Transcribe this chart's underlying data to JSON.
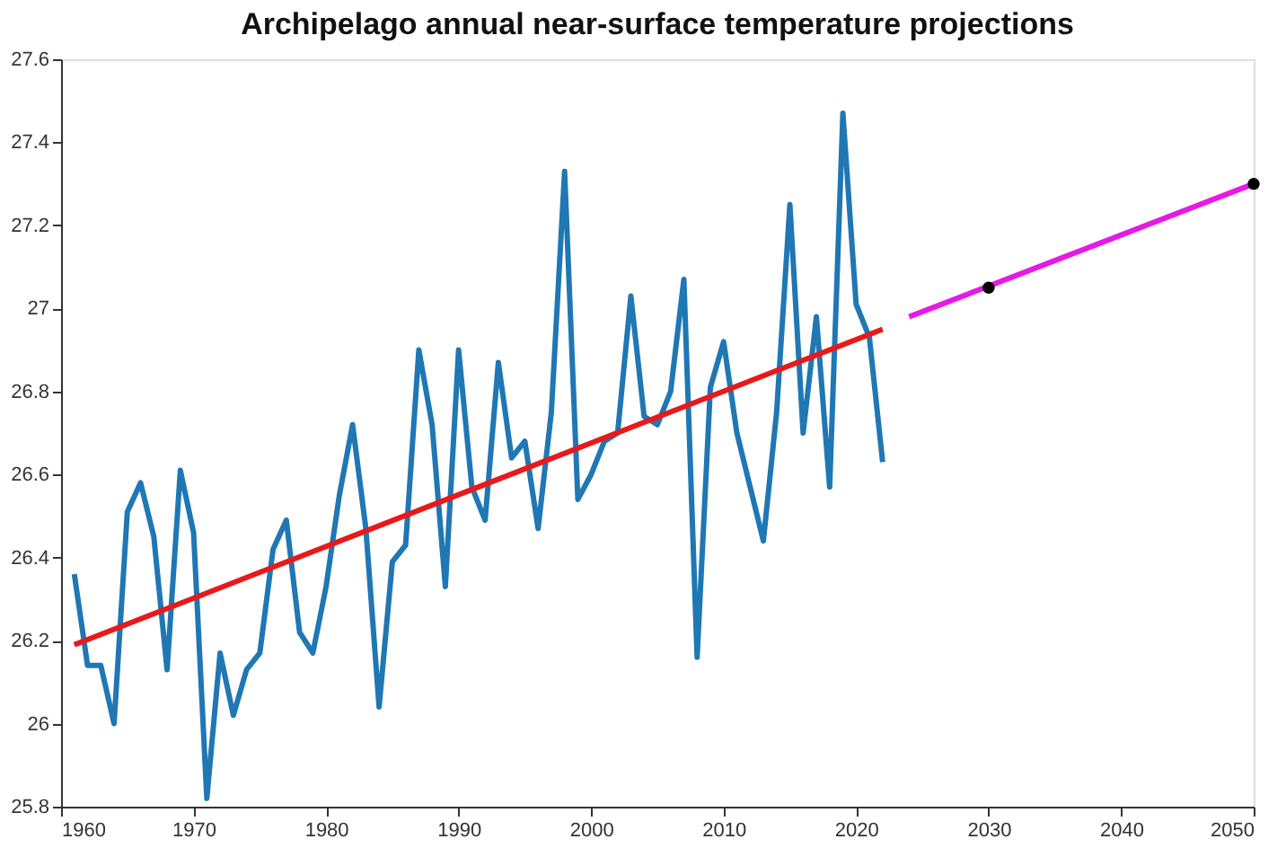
{
  "chart_data": {
    "type": "line",
    "title": "Archipelago annual near-surface temperature projections",
    "xlim": [
      1960,
      2050
    ],
    "xticks": [
      1960,
      1970,
      1980,
      1990,
      2000,
      2010,
      2020,
      2030,
      2040,
      2050
    ],
    "ylim": [
      25.8,
      27.6
    ],
    "yticks": [
      25.8,
      26,
      26.2,
      26.4,
      26.6,
      26.8,
      27,
      27.2,
      27.4,
      27.6
    ],
    "grid": false,
    "series": [
      {
        "color": "#1f77b4",
        "marker": "none",
        "x": [
          1961,
          1962,
          1963,
          1964,
          1965,
          1966,
          1967,
          1968,
          1969,
          1970,
          1971,
          1972,
          1973,
          1974,
          1975,
          1976,
          1977,
          1978,
          1979,
          1980,
          1981,
          1982,
          1983,
          1984,
          1985,
          1986,
          1987,
          1988,
          1989,
          1990,
          1991,
          1992,
          1993,
          1994,
          1995,
          1996,
          1997,
          1998,
          1999,
          2000,
          2001,
          2002,
          2003,
          2004,
          2005,
          2006,
          2007,
          2008,
          2009,
          2010,
          2011,
          2012,
          2013,
          2014,
          2015,
          2016,
          2017,
          2018,
          2019,
          2020,
          2021,
          2022
        ],
        "values": [
          26.36,
          26.14,
          26.14,
          26.0,
          26.51,
          26.58,
          26.45,
          26.13,
          26.61,
          26.46,
          25.82,
          26.17,
          26.02,
          26.13,
          26.17,
          26.42,
          26.49,
          26.22,
          26.17,
          26.33,
          26.55,
          26.72,
          26.47,
          26.04,
          26.39,
          26.43,
          26.9,
          26.72,
          26.33,
          26.9,
          26.57,
          26.49,
          26.87,
          26.64,
          26.68,
          26.47,
          26.75,
          27.33,
          26.54,
          26.6,
          26.68,
          26.7,
          27.03,
          26.74,
          26.72,
          26.8,
          27.07,
          26.16,
          26.81,
          26.92,
          26.7,
          26.57,
          26.44,
          26.75,
          27.25,
          26.7,
          26.98,
          26.57,
          27.47,
          27.01,
          26.93,
          26.63
        ]
      },
      {
        "color": "#e8191b",
        "marker": "none",
        "x": [
          1961,
          2022
        ],
        "values": [
          26.19,
          26.95
        ]
      },
      {
        "color": "#e619e6",
        "marker": "none",
        "x": [
          2024,
          2050
        ],
        "values": [
          26.98,
          27.3
        ]
      },
      {
        "type": "scatter",
        "color": "#000000",
        "marker": "circle",
        "x": [
          2030,
          2050
        ],
        "values": [
          27.05,
          27.3
        ]
      }
    ]
  }
}
